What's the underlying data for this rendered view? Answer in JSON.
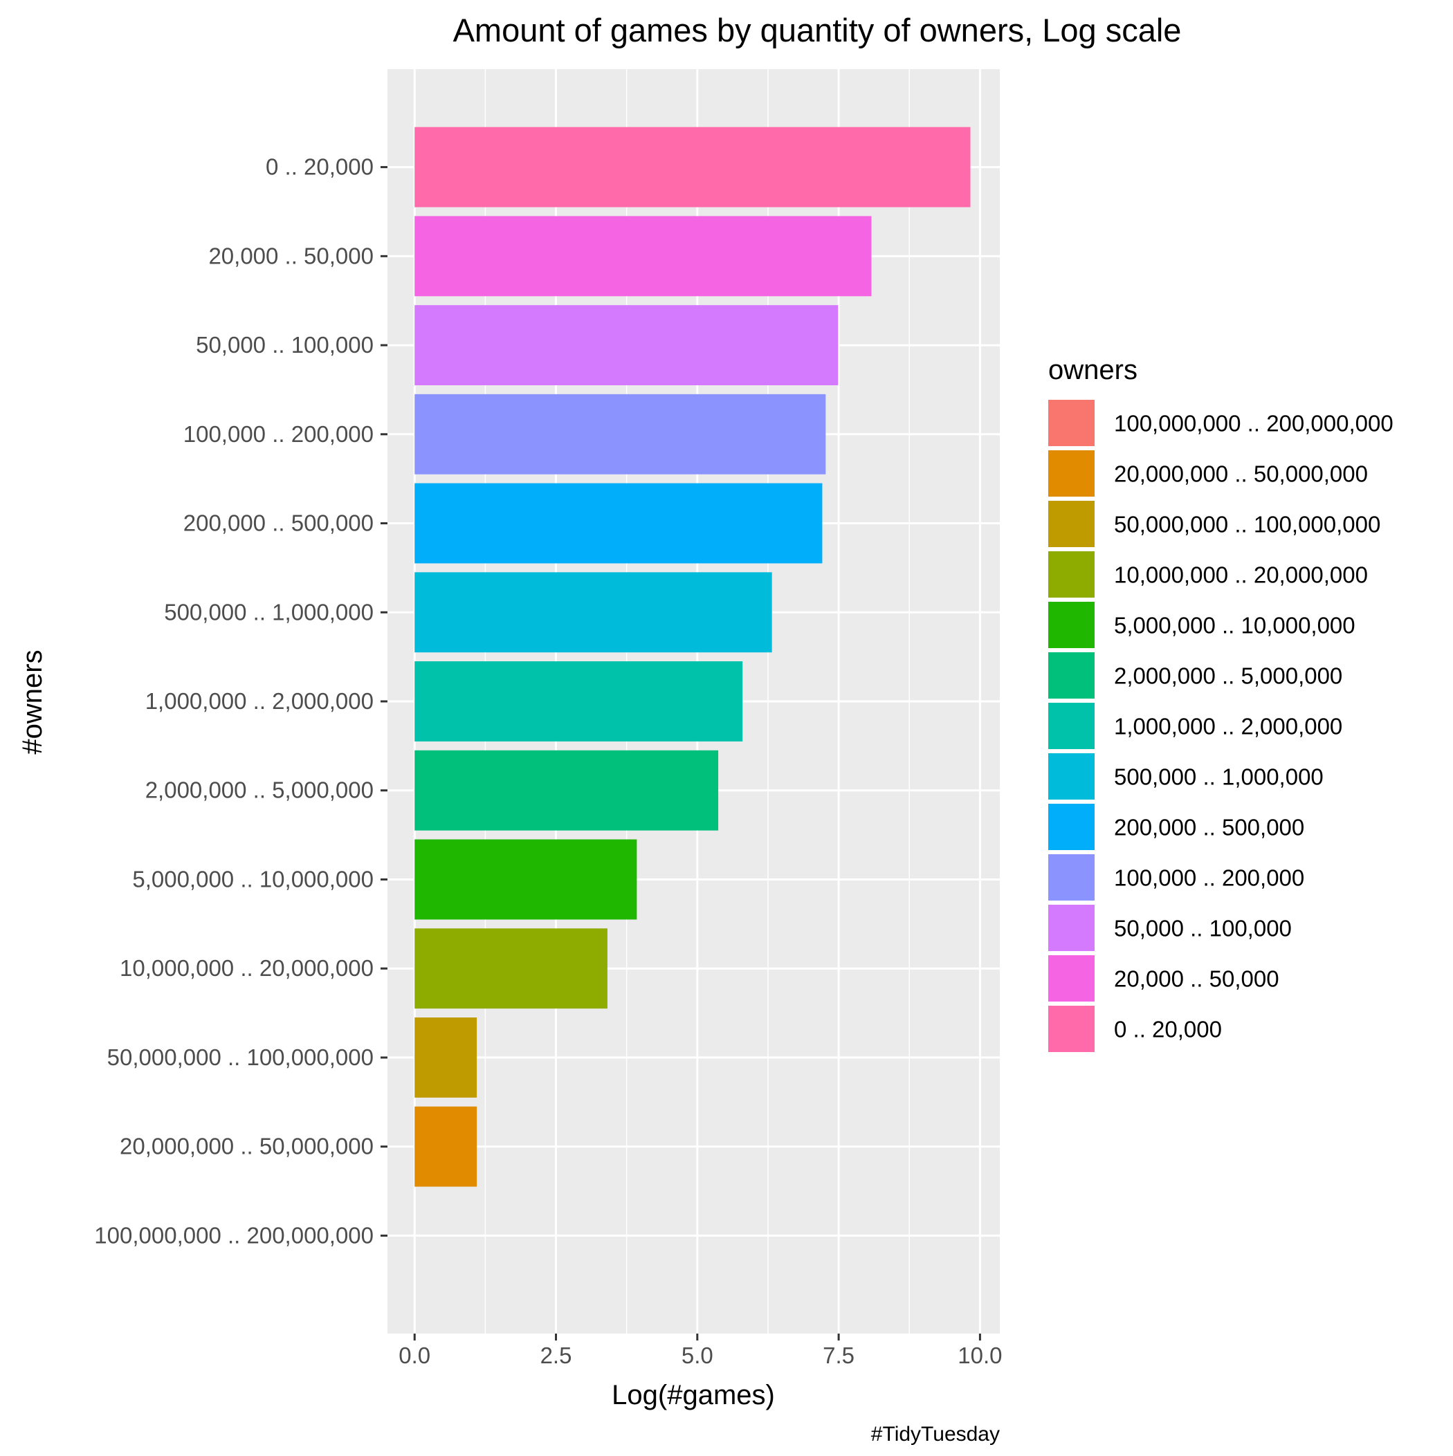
{
  "chart_data": {
    "type": "bar",
    "orientation": "horizontal",
    "title": "Amount of games by quantity of owners, Log scale",
    "xlabel": "Log(#games)",
    "ylabel": "#owners",
    "caption": "#TidyTuesday",
    "xlim": [
      -0.48,
      10.35
    ],
    "xticks": [
      {
        "value": 0,
        "label": "0.0"
      },
      {
        "value": 2.5,
        "label": "2.5"
      },
      {
        "value": 5,
        "label": "5.0"
      },
      {
        "value": 7.5,
        "label": "7.5"
      },
      {
        "value": 10,
        "label": "10.0"
      }
    ],
    "grid": true,
    "legend_position": "right",
    "legend_title": "owners",
    "categories": [
      "0 .. 20,000",
      "20,000 .. 50,000",
      "50,000 .. 100,000",
      "100,000 .. 200,000",
      "200,000 .. 500,000",
      "500,000 .. 1,000,000",
      "1,000,000 .. 2,000,000",
      "2,000,000 .. 5,000,000",
      "5,000,000 .. 10,000,000",
      "10,000,000 .. 20,000,000",
      "50,000,000 .. 100,000,000",
      "20,000,000 .. 50,000,000",
      "100,000,000 .. 200,000,000"
    ],
    "values": [
      9.83,
      8.08,
      7.49,
      7.27,
      7.21,
      6.32,
      5.8,
      5.37,
      3.93,
      3.41,
      1.1,
      1.1,
      0.0
    ],
    "colors": [
      "#FF6AAA",
      "#F564E3",
      "#D37AFF",
      "#8B93FF",
      "#00AEFA",
      "#00BBDA",
      "#00C1AA",
      "#00C07B",
      "#1FB700",
      "#8EAB00",
      "#C09B00",
      "#E08B00",
      "#F8766D"
    ],
    "legend": [
      {
        "label": "100,000,000 .. 200,000,000",
        "color": "#F8766D"
      },
      {
        "label": "20,000,000 .. 50,000,000",
        "color": "#E08B00"
      },
      {
        "label": "50,000,000 .. 100,000,000",
        "color": "#C09B00"
      },
      {
        "label": "10,000,000 .. 20,000,000",
        "color": "#8EAB00"
      },
      {
        "label": "5,000,000 .. 10,000,000",
        "color": "#1FB700"
      },
      {
        "label": "2,000,000 .. 5,000,000",
        "color": "#00C07B"
      },
      {
        "label": "1,000,000 .. 2,000,000",
        "color": "#00C1AA"
      },
      {
        "label": "500,000 .. 1,000,000",
        "color": "#00BBDA"
      },
      {
        "label": "200,000 .. 500,000",
        "color": "#00AEFA"
      },
      {
        "label": "100,000 .. 200,000",
        "color": "#8B93FF"
      },
      {
        "label": "50,000 .. 100,000",
        "color": "#D37AFF"
      },
      {
        "label": "20,000 .. 50,000",
        "color": "#F564E3"
      },
      {
        "label": "0 .. 20,000",
        "color": "#FF6AAA"
      }
    ],
    "panel_background": "#EBEBEB",
    "grid_color": "#FFFFFF"
  }
}
